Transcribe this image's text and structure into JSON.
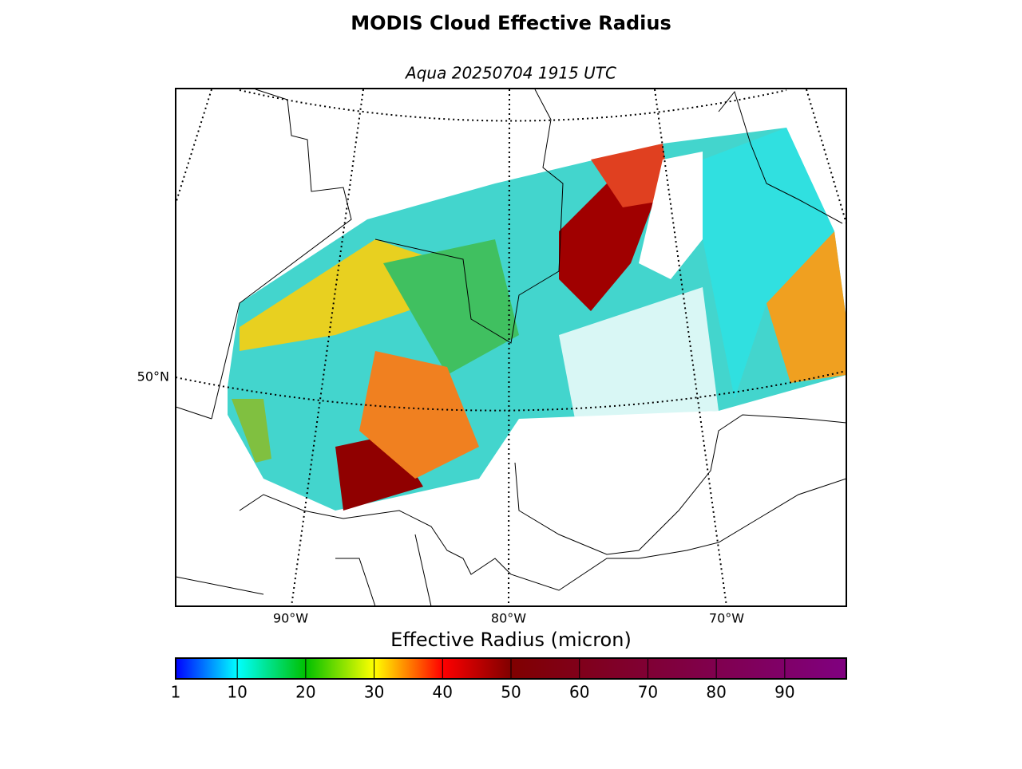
{
  "title": "MODIS Cloud Effective Radius",
  "subtitle": "Aqua 20250704 1915 UTC",
  "map": {
    "parallel_labels": [
      "50°N"
    ],
    "meridian_labels": [
      "90°W",
      "80°W",
      "70°W"
    ]
  },
  "colorbar": {
    "label": "Effective Radius (micron)",
    "range": [
      1,
      99
    ],
    "ticks": [
      1,
      10,
      20,
      30,
      40,
      50,
      60,
      70,
      80,
      90
    ]
  }
}
